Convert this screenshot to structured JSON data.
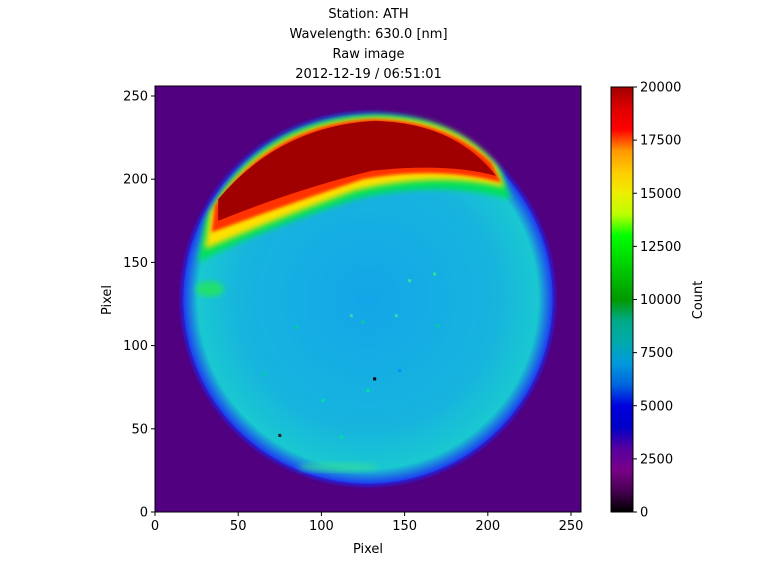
{
  "chart_data": {
    "type": "heatmap",
    "title_lines": [
      "Station: ATH",
      "Wavelength: 630.0 [nm]",
      "Raw image",
      "2012-12-19 / 06:51:01"
    ],
    "xlabel": "Pixel",
    "ylabel": "Pixel",
    "xlim": [
      0,
      256
    ],
    "ylim": [
      0,
      256
    ],
    "x_ticks": [
      0,
      50,
      100,
      150,
      200,
      250
    ],
    "y_ticks": [
      0,
      50,
      100,
      150,
      200,
      250
    ],
    "x_tick_labels": [
      "0",
      "50",
      "100",
      "150",
      "200",
      "250"
    ],
    "y_tick_labels": [
      "0",
      "50",
      "100",
      "150",
      "200",
      "250"
    ],
    "grid": false,
    "colormap": "nipy_spectral",
    "colorbar": {
      "label": "Count",
      "range": [
        0,
        20000
      ],
      "ticks": [
        0,
        2500,
        5000,
        7500,
        10000,
        12500,
        15000,
        17500,
        20000
      ],
      "tick_labels": [
        "0",
        "2500",
        "5000",
        "7500",
        "10000",
        "12500",
        "15000",
        "17500",
        "20000"
      ]
    },
    "image_structure": {
      "background_count": 2500,
      "circle_center": [
        128,
        128
      ],
      "circle_radius": 111,
      "interior_count": 7200,
      "bright_arc_count": 20000
    }
  }
}
